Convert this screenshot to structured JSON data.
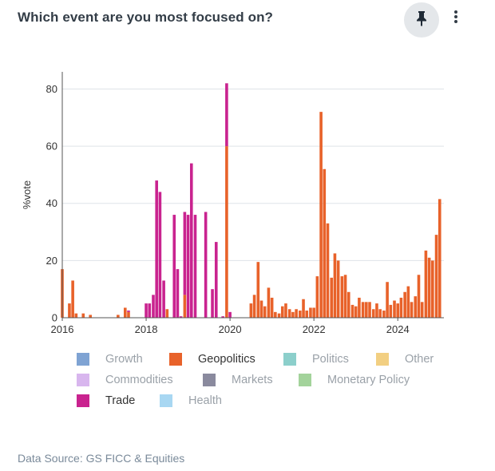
{
  "card": {
    "title": "Which event are you most focused on?",
    "pin_icon": "pin-icon",
    "more_icon": "vertical-ellipsis-icon",
    "footer": "Data Source: GS FICC & Equities"
  },
  "chart_data": {
    "type": "bar",
    "stacked": true,
    "title": "",
    "xlabel": "",
    "ylabel": "%vote",
    "xlim": [
      2016.0,
      2025.1
    ],
    "ylim": [
      0,
      86
    ],
    "xticks": [
      2016,
      2018,
      2020,
      2022,
      2024
    ],
    "yticks": [
      0,
      20,
      40,
      60,
      80
    ],
    "grid": true,
    "legend_placement": "bottom",
    "legend": [
      {
        "name": "Growth",
        "color": "#7fa3d3",
        "active": false
      },
      {
        "name": "Geopolitics",
        "color": "#e8622a",
        "active": true
      },
      {
        "name": "Politics",
        "color": "#8ccfcb",
        "active": false
      },
      {
        "name": "Other",
        "color": "#f2cf82",
        "active": false
      },
      {
        "name": "Commodities",
        "color": "#d8b6ee",
        "active": false
      },
      {
        "name": "Markets",
        "color": "#8a8a9e",
        "active": false
      },
      {
        "name": "Monetary Policy",
        "color": "#a3d39b",
        "active": false
      },
      {
        "name": "Trade",
        "color": "#c9238f",
        "active": true
      },
      {
        "name": "Health",
        "color": "#a8d7f2",
        "active": false
      }
    ],
    "series": [
      {
        "name": "Geopolitics",
        "color": "#e8622a",
        "points": [
          [
            2016.0,
            17
          ],
          [
            2016.17,
            5
          ],
          [
            2016.25,
            13
          ],
          [
            2016.33,
            1.5
          ],
          [
            2016.5,
            1.5
          ],
          [
            2016.67,
            1
          ],
          [
            2017.33,
            1
          ],
          [
            2017.5,
            3.5
          ],
          [
            2017.58,
            2
          ],
          [
            2018.5,
            3
          ],
          [
            2018.92,
            8
          ],
          [
            2019.92,
            60
          ],
          [
            2020.5,
            5
          ],
          [
            2020.58,
            8
          ],
          [
            2020.67,
            19.5
          ],
          [
            2020.75,
            6
          ],
          [
            2020.83,
            4
          ],
          [
            2020.92,
            10.5
          ],
          [
            2021.0,
            7
          ],
          [
            2021.08,
            2
          ],
          [
            2021.17,
            1.5
          ],
          [
            2021.25,
            4
          ],
          [
            2021.33,
            5
          ],
          [
            2021.42,
            3
          ],
          [
            2021.5,
            2
          ],
          [
            2021.58,
            3
          ],
          [
            2021.67,
            2.5
          ],
          [
            2021.75,
            6.5
          ],
          [
            2021.83,
            2.5
          ],
          [
            2021.92,
            3.5
          ],
          [
            2022.0,
            3.5
          ],
          [
            2022.08,
            14.5
          ],
          [
            2022.17,
            72
          ],
          [
            2022.25,
            52
          ],
          [
            2022.33,
            33
          ],
          [
            2022.42,
            14
          ],
          [
            2022.5,
            22.5
          ],
          [
            2022.58,
            20
          ],
          [
            2022.67,
            14.5
          ],
          [
            2022.75,
            15
          ],
          [
            2022.83,
            9
          ],
          [
            2022.92,
            4.5
          ],
          [
            2023.0,
            4
          ],
          [
            2023.08,
            7
          ],
          [
            2023.17,
            5.5
          ],
          [
            2023.25,
            5.5
          ],
          [
            2023.33,
            5.5
          ],
          [
            2023.42,
            3
          ],
          [
            2023.5,
            5
          ],
          [
            2023.58,
            3
          ],
          [
            2023.67,
            2.5
          ],
          [
            2023.75,
            12.5
          ],
          [
            2023.83,
            4.5
          ],
          [
            2023.92,
            6
          ],
          [
            2024.0,
            5
          ],
          [
            2024.08,
            7
          ],
          [
            2024.17,
            9
          ],
          [
            2024.25,
            11
          ],
          [
            2024.33,
            5.5
          ],
          [
            2024.42,
            7.5
          ],
          [
            2024.5,
            15
          ],
          [
            2024.58,
            5.5
          ],
          [
            2024.67,
            23.5
          ],
          [
            2024.75,
            21
          ],
          [
            2024.83,
            20
          ],
          [
            2024.92,
            29
          ],
          [
            2025.0,
            41.5
          ]
        ]
      },
      {
        "name": "Trade",
        "color": "#c9238f",
        "points": [
          [
            2017.58,
            0.5
          ],
          [
            2018.0,
            5
          ],
          [
            2018.08,
            5
          ],
          [
            2018.17,
            8
          ],
          [
            2018.25,
            48
          ],
          [
            2018.33,
            44
          ],
          [
            2018.42,
            13
          ],
          [
            2018.67,
            36
          ],
          [
            2018.75,
            17
          ],
          [
            2018.83,
            0.5
          ],
          [
            2018.92,
            29
          ],
          [
            2019.0,
            36
          ],
          [
            2019.08,
            54
          ],
          [
            2019.17,
            36
          ],
          [
            2019.42,
            37
          ],
          [
            2019.58,
            10
          ],
          [
            2019.67,
            26.5
          ],
          [
            2019.83,
            0.5
          ],
          [
            2019.92,
            22
          ],
          [
            2020.0,
            2
          ]
        ]
      }
    ]
  }
}
